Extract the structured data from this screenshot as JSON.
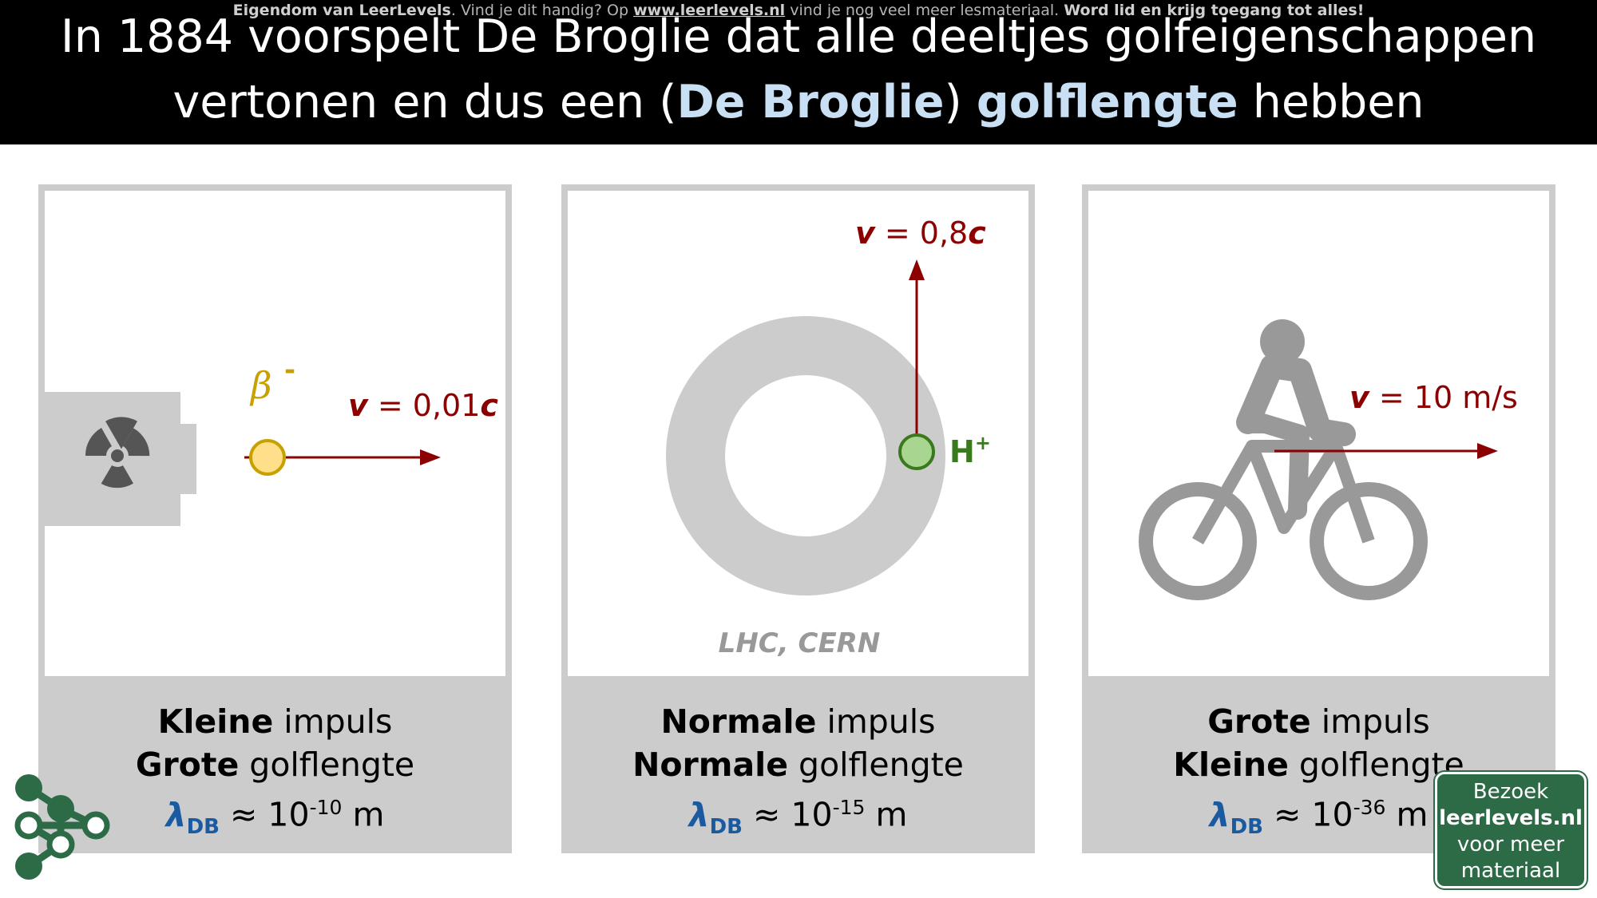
{
  "watermark": {
    "part1": "Eigendom van LeerLevels",
    "part2": ". Vind je dit handig? Op ",
    "url": "www.leerlevels.nl",
    "part3": " vind je nog veel meer lesmateriaal. ",
    "part4": "Word lid en krijg toegang tot alles!"
  },
  "title": {
    "line1": "In 1884 voorspelt De Broglie dat alle deeltjes golfeigenschappen",
    "line2_a": "vertonen en dus een (",
    "line2_hl1": "De Broglie",
    "line2_b": ") ",
    "line2_hl2": "golflengte",
    "line2_c": " hebben"
  },
  "panel1": {
    "particle_label": "β",
    "particle_charge": "-",
    "velocity_v": "v",
    "velocity_value": " = 0,01",
    "velocity_c": "c",
    "icon": "radiation-icon",
    "impulse_bold": "Kleine",
    "impulse_rest": " impuls",
    "wave_bold": "Grote",
    "wave_rest": " golflengte",
    "lambda": "λ",
    "lambda_sub": "DB",
    "approx": " ≈ 10",
    "exponent": "-10",
    "unit": " m"
  },
  "panel2": {
    "velocity_v": "v",
    "velocity_value": " = 0,8",
    "velocity_c": "c",
    "particle_label": "H",
    "particle_charge": "+",
    "ring_label": "LHC, CERN",
    "impulse_bold": "Normale",
    "impulse_rest": " impuls",
    "wave_bold": "Normale",
    "wave_rest": " golflengte",
    "lambda": "λ",
    "lambda_sub": "DB",
    "approx": " ≈ 10",
    "exponent": "-15",
    "unit": " m"
  },
  "panel3": {
    "velocity_v": "v",
    "velocity_value": " = 10 m/s",
    "icon": "cyclist-icon",
    "impulse_bold": "Grote",
    "impulse_rest": " impuls",
    "wave_bold": "Kleine",
    "wave_rest": " golflengte",
    "lambda": "λ",
    "lambda_sub": "DB",
    "approx": " ≈ 10",
    "exponent": "-36",
    "unit": " m"
  },
  "visit": {
    "line1": "Bezoek",
    "line2": "leerlevels.nl",
    "line3": "voor meer",
    "line4": "materiaal"
  },
  "colors": {
    "arrow": "#8b0000",
    "beta": "#c8a000",
    "proton": "#3a7a1e",
    "lambda": "#1a5aa0",
    "highlight": "#c9dff3",
    "panel_border": "#cccccc",
    "brand": "#2c6b46"
  }
}
